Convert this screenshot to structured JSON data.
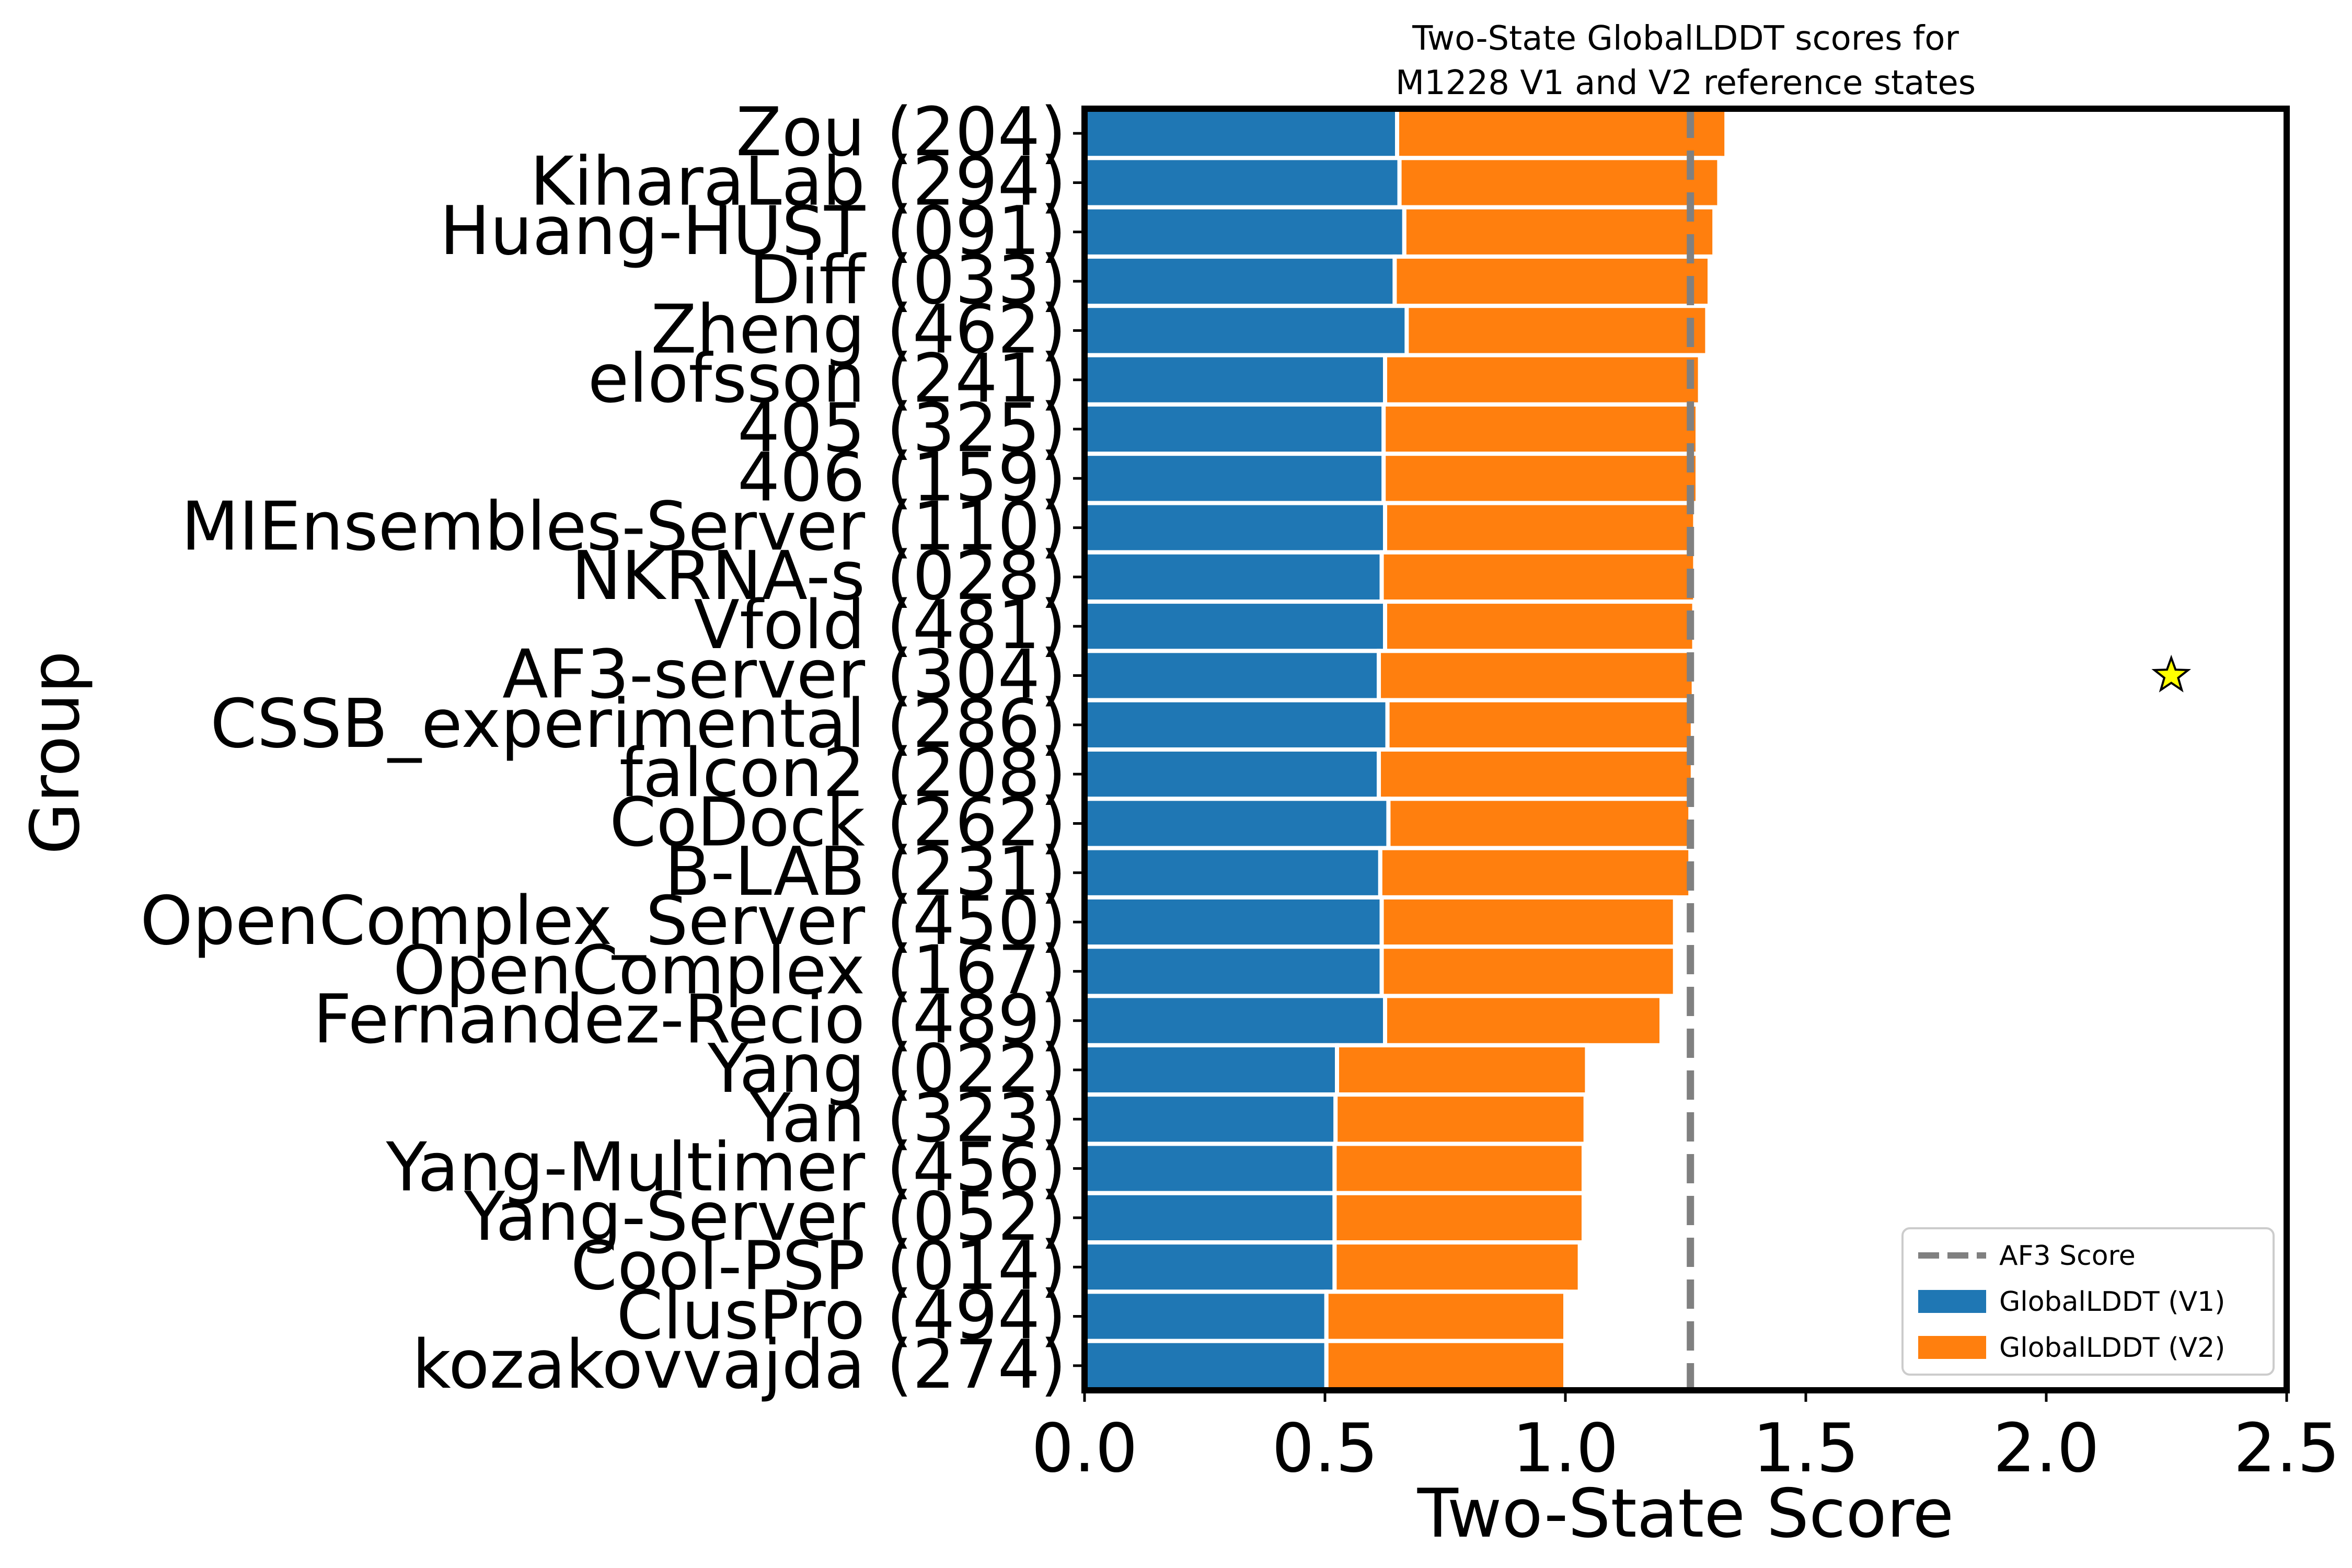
{
  "chart_data": {
    "type": "bar",
    "orientation": "horizontal",
    "stacked": true,
    "title": "Two-State GlobalLDDT scores for\nM1228 V1 and V2 reference states",
    "xlabel": "Two-State Score",
    "ylabel": "Group",
    "xlim": [
      0,
      2.5
    ],
    "xticks": [
      "0.0",
      "0.5",
      "1.0",
      "1.5",
      "2.0",
      "2.5"
    ],
    "grid": false,
    "legend_position": "lower-right",
    "categories": [
      "Zou (204)",
      "KiharaLab (294)",
      "Huang-HUST (091)",
      "Diff (033)",
      "Zheng (462)",
      "elofsson (241)",
      "405 (325)",
      "406 (159)",
      "MIEnsembles-Server (110)",
      "NKRNA-s (028)",
      "Vfold (481)",
      "AF3-server (304)",
      "CSSB_experimental (286)",
      "falcon2 (208)",
      "CoDock (262)",
      "B-LAB (231)",
      "OpenComplex_Server (450)",
      "OpenComplex (167)",
      "Fernandez-Recio (489)",
      "Yang (022)",
      "Yan (323)",
      "Yang-Multimer (456)",
      "Yang-Server (052)",
      "Cool-PSP (014)",
      "ClusPro (494)",
      "kozakovvajda (274)"
    ],
    "series": [
      {
        "name": "GlobalLDDT (V1)",
        "color": "#1f77b4",
        "values": [
          0.65,
          0.655,
          0.665,
          0.645,
          0.67,
          0.625,
          0.622,
          0.622,
          0.625,
          0.618,
          0.625,
          0.612,
          0.63,
          0.612,
          0.632,
          0.615,
          0.618,
          0.618,
          0.625,
          0.525,
          0.522,
          0.52,
          0.52,
          0.52,
          0.503,
          0.503
        ]
      },
      {
        "name": "GlobalLDDT (V2)",
        "color": "#ff7f0e",
        "values": [
          0.685,
          0.665,
          0.645,
          0.655,
          0.625,
          0.655,
          0.653,
          0.653,
          0.645,
          0.652,
          0.643,
          0.655,
          0.635,
          0.653,
          0.628,
          0.645,
          0.61,
          0.61,
          0.575,
          0.52,
          0.52,
          0.518,
          0.518,
          0.51,
          0.497,
          0.497
        ]
      }
    ],
    "reference_line": {
      "name": "AF3 Score",
      "x": 1.26,
      "color": "#808080",
      "style": "dashed"
    },
    "marker": {
      "shape": "star",
      "x": 2.26,
      "category": "AF3-server (304)",
      "color": "#ffff00"
    }
  }
}
